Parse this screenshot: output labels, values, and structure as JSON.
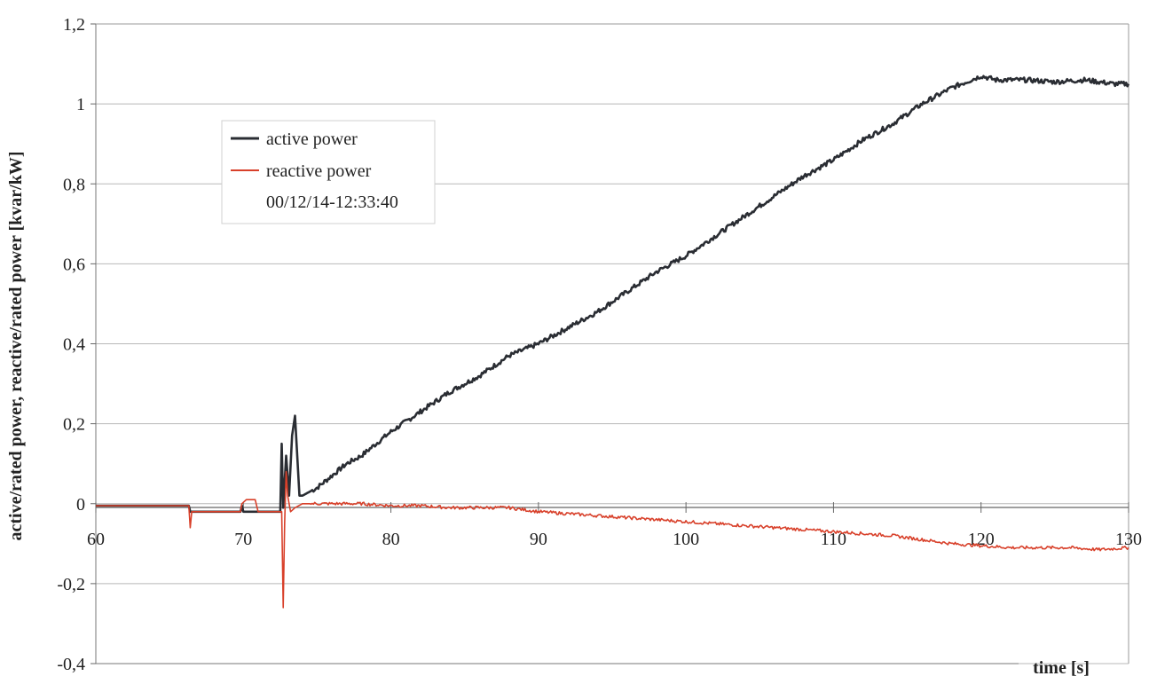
{
  "chart_data": {
    "type": "line",
    "title": "",
    "xlabel": "time [s]",
    "ylabel": "active/rated power, reactive/rated power [kvar/kW]",
    "xlim": [
      60,
      130
    ],
    "ylim": [
      -0.4,
      1.2
    ],
    "x_ticks": [
      60,
      70,
      80,
      90,
      100,
      110,
      120,
      130
    ],
    "x_tick_labels": [
      "60",
      "70",
      "80",
      "90",
      "100",
      "110",
      "120",
      "130"
    ],
    "y_ticks": [
      -0.4,
      -0.2,
      0,
      0.2,
      0.4,
      0.6,
      0.8,
      1,
      1.2
    ],
    "y_tick_labels": [
      "-0,4",
      "-0,2",
      "0",
      "0,2",
      "0,4",
      "0,6",
      "0,8",
      "1",
      "1,2"
    ],
    "grid": "horizontal",
    "legend_position": "top-left",
    "legend_note": "00/12/14-12:33:40",
    "series": [
      {
        "name": "active power",
        "color": "#2a2d33",
        "x": [
          60,
          66.3,
          66.4,
          66.5,
          69.8,
          69.9,
          70.0,
          72.5,
          72.6,
          72.7,
          72.9,
          73.1,
          73.3,
          73.5,
          73.8,
          74.0,
          75,
          76,
          77,
          78,
          80,
          82,
          84,
          86,
          88,
          90,
          92,
          94,
          96,
          98,
          100,
          102,
          104,
          106,
          108,
          110,
          112,
          114,
          116,
          118,
          120,
          121,
          123,
          125,
          127,
          129,
          130
        ],
        "y": [
          -0.005,
          -0.005,
          -0.02,
          -0.02,
          -0.02,
          -0.005,
          -0.02,
          -0.02,
          0.15,
          -0.01,
          0.12,
          0.02,
          0.17,
          0.22,
          0.02,
          0.02,
          0.04,
          0.07,
          0.1,
          0.12,
          0.18,
          0.23,
          0.28,
          0.32,
          0.37,
          0.4,
          0.44,
          0.48,
          0.53,
          0.58,
          0.62,
          0.67,
          0.72,
          0.77,
          0.82,
          0.86,
          0.91,
          0.95,
          1.0,
          1.04,
          1.07,
          1.06,
          1.06,
          1.055,
          1.06,
          1.05,
          1.05
        ]
      },
      {
        "name": "reactive power",
        "color": "#d8402a",
        "x": [
          60,
          66.3,
          66.4,
          66.5,
          69.8,
          69.9,
          70.2,
          70.8,
          71.0,
          72.6,
          72.7,
          72.8,
          72.9,
          73.0,
          73.2,
          73.5,
          74,
          75,
          78,
          80,
          82,
          84,
          86,
          88,
          90,
          92,
          94,
          96,
          98,
          100,
          102,
          104,
          106,
          108,
          110,
          112,
          114,
          116,
          118,
          120,
          122,
          124,
          126,
          128,
          130
        ],
        "y": [
          -0.005,
          -0.005,
          -0.06,
          -0.02,
          -0.02,
          0.0,
          0.01,
          0.01,
          -0.02,
          -0.02,
          -0.26,
          -0.05,
          0.08,
          0.02,
          -0.02,
          -0.01,
          0.0,
          0.0,
          0.0,
          -0.005,
          -0.005,
          -0.01,
          -0.01,
          -0.01,
          -0.02,
          -0.025,
          -0.03,
          -0.035,
          -0.04,
          -0.045,
          -0.05,
          -0.055,
          -0.06,
          -0.065,
          -0.07,
          -0.075,
          -0.08,
          -0.09,
          -0.1,
          -0.105,
          -0.11,
          -0.11,
          -0.11,
          -0.115,
          -0.11
        ]
      }
    ]
  }
}
